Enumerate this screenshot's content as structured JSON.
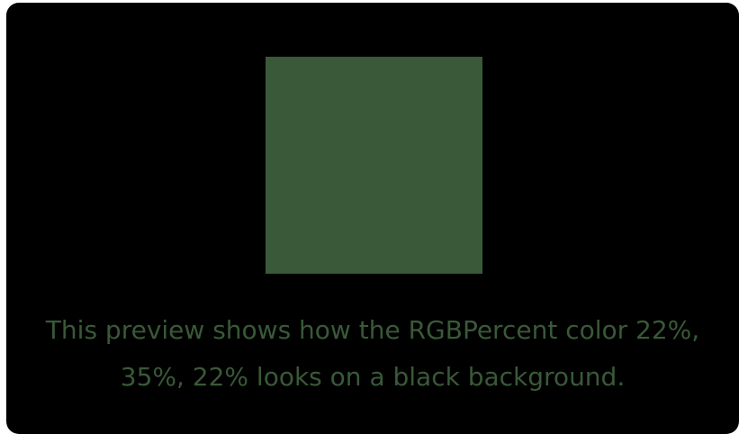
{
  "preview": {
    "color_hex": "#395938",
    "background_hex": "#000000",
    "caption": "This preview shows how the RGBPercent color 22%, 35%, 22% looks on a black background."
  }
}
